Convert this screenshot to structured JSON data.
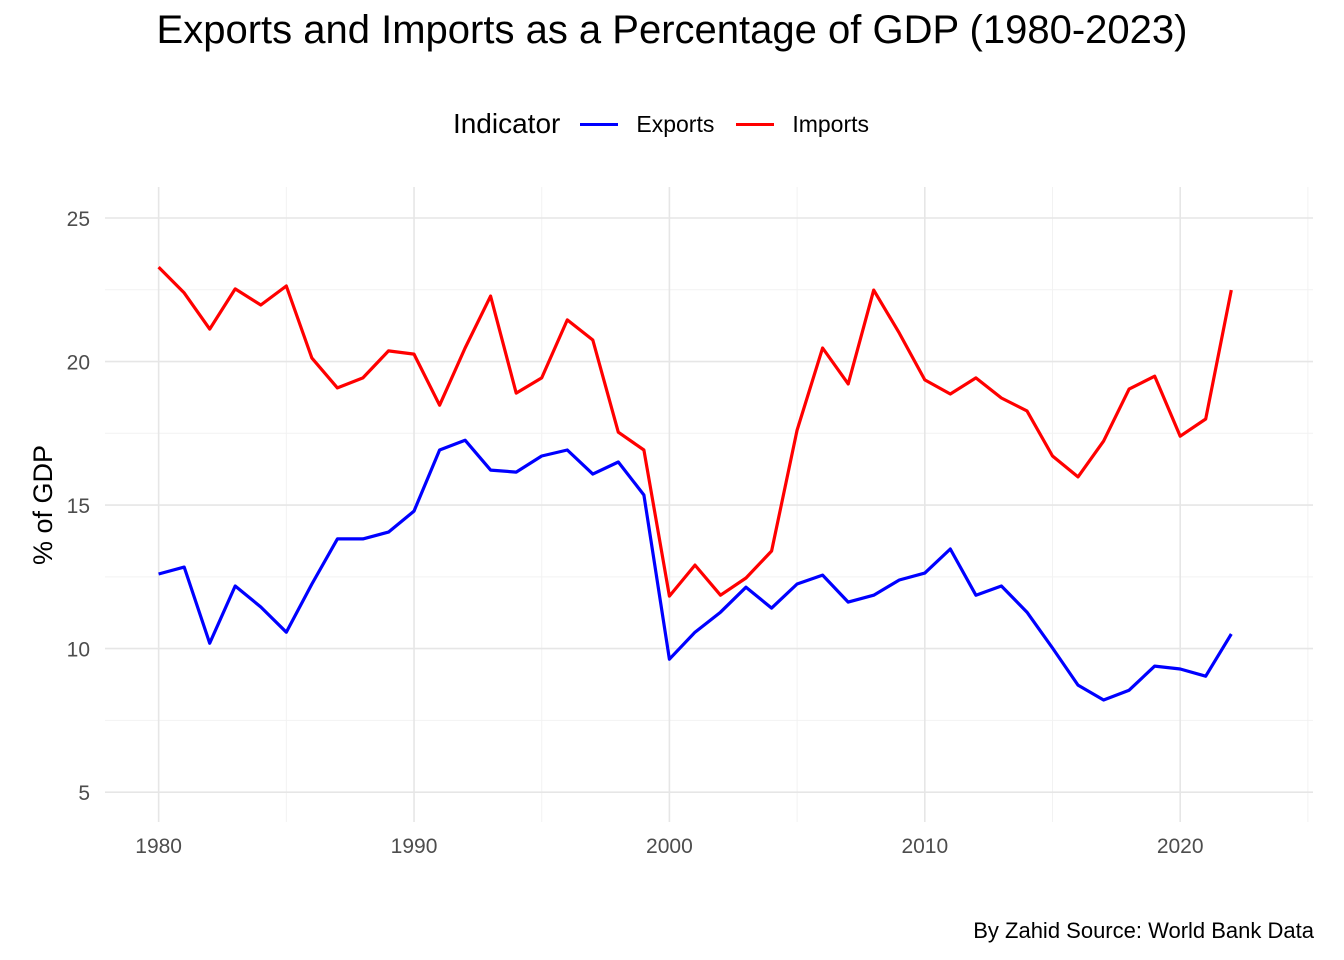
{
  "chart_data": {
    "type": "line",
    "title": "Exports and Imports as a Percentage of GDP (1980-2023)",
    "xlabel": "",
    "ylabel": "% of GDP",
    "caption": "By Zahid Source: World Bank Data",
    "legend_title": "Indicator",
    "legend_position": "top",
    "grid": true,
    "xlim": [
      1977.9,
      2025.2
    ],
    "ylim": [
      3.96,
      26.08
    ],
    "xticks": [
      1980,
      1990,
      2000,
      2010,
      2020
    ],
    "yticks": [
      5,
      10,
      15,
      20,
      25
    ],
    "x": [
      1980,
      1981,
      1982,
      1983,
      1984,
      1985,
      1986,
      1987,
      1988,
      1989,
      1990,
      1991,
      1992,
      1993,
      1994,
      1995,
      1996,
      1997,
      1998,
      1999,
      2000,
      2001,
      2002,
      2003,
      2004,
      2005,
      2006,
      2007,
      2008,
      2009,
      2010,
      2011,
      2012,
      2013,
      2014,
      2015,
      2016,
      2017,
      2018,
      2019,
      2020,
      2021,
      2022
    ],
    "series": [
      {
        "name": "Exports",
        "color": "#0000FF",
        "values": [
          12.6,
          12.84,
          10.19,
          12.18,
          11.45,
          10.57,
          12.25,
          13.82,
          13.82,
          14.06,
          14.79,
          16.92,
          17.26,
          16.22,
          16.15,
          16.71,
          16.92,
          16.08,
          16.5,
          15.35,
          9.63,
          10.57,
          11.27,
          12.14,
          11.41,
          12.25,
          12.56,
          11.62,
          11.86,
          12.39,
          12.63,
          13.47,
          11.86,
          12.18,
          11.27,
          10.02,
          8.73,
          8.21,
          8.55,
          9.39,
          9.29,
          9.04,
          10.51
        ]
      },
      {
        "name": "Imports",
        "color": "#FF0000",
        "values": [
          23.29,
          22.39,
          21.13,
          22.53,
          21.97,
          22.63,
          20.12,
          19.08,
          19.43,
          20.37,
          20.26,
          18.48,
          20.47,
          22.28,
          18.9,
          19.43,
          21.45,
          20.75,
          17.54,
          16.92,
          11.83,
          12.91,
          11.86,
          12.46,
          13.4,
          17.61,
          20.47,
          19.22,
          22.49,
          20.99,
          19.36,
          18.87,
          19.43,
          18.73,
          18.28,
          16.71,
          15.98,
          17.23,
          19.04,
          19.49,
          17.4,
          18.0,
          22.49
        ]
      }
    ]
  }
}
